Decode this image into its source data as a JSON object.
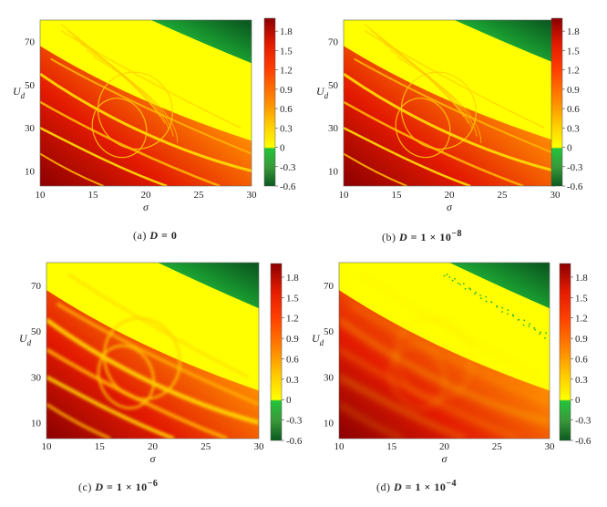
{
  "chart_data": [
    {
      "type": "heatmap",
      "panel_label": "(a)",
      "param_symbol": "D",
      "param_value": "= 0",
      "xlabel": "σ",
      "ylabel": "U_d",
      "xlim": [
        10,
        30
      ],
      "ylim": [
        3,
        80
      ],
      "x_ticks": [
        "10",
        "15",
        "20",
        "25",
        "30"
      ],
      "y_ticks": [
        "10",
        "30",
        "50",
        "70"
      ],
      "colorbar_ticks": [
        "1.8",
        "1.5",
        "1.2",
        "0.9",
        "0.6",
        "0.3",
        "0",
        "-0.3",
        "-0.6"
      ],
      "colorbar_range": [
        -0.6,
        2.0
      ],
      "noise_level": "none",
      "structure": "sharp chaotic bands"
    },
    {
      "type": "heatmap",
      "panel_label": "(b)",
      "param_symbol": "D",
      "param_value": "= 1 × 10",
      "param_exp": "−8",
      "xlabel": "σ",
      "ylabel": "U_d",
      "xlim": [
        10,
        30
      ],
      "ylim": [
        3,
        80
      ],
      "x_ticks": [
        "10",
        "15",
        "20",
        "25",
        "30"
      ],
      "y_ticks": [
        "10",
        "30",
        "50",
        "70"
      ],
      "colorbar_ticks": [
        "1.8",
        "1.5",
        "1.2",
        "0.9",
        "0.6",
        "0.3",
        "0",
        "-0.3",
        "-0.6"
      ],
      "colorbar_range": [
        -0.6,
        2.0
      ],
      "noise_level": "very low",
      "structure": "sharp chaotic bands"
    },
    {
      "type": "heatmap",
      "panel_label": "(c)",
      "param_symbol": "D",
      "param_value": "= 1 × 10",
      "param_exp": "−6",
      "xlabel": "σ",
      "ylabel": "U_d",
      "xlim": [
        10,
        30
      ],
      "ylim": [
        3,
        80
      ],
      "x_ticks": [
        "10",
        "15",
        "20",
        "25",
        "30"
      ],
      "y_ticks": [
        "10",
        "30",
        "50",
        "70"
      ],
      "colorbar_ticks": [
        "1.8",
        "1.5",
        "1.2",
        "0.9",
        "0.6",
        "0.3",
        "0",
        "-0.3",
        "-0.6"
      ],
      "colorbar_range": [
        -0.6,
        2.0
      ],
      "noise_level": "low",
      "structure": "blurred bands"
    },
    {
      "type": "heatmap",
      "panel_label": "(d)",
      "param_symbol": "D",
      "param_value": "= 1 × 10",
      "param_exp": "−4",
      "xlabel": "σ",
      "ylabel": "U_d",
      "xlim": [
        10,
        30
      ],
      "ylim": [
        3,
        80
      ],
      "x_ticks": [
        "10",
        "15",
        "20",
        "25",
        "30"
      ],
      "y_ticks": [
        "10",
        "30",
        "50",
        "70"
      ],
      "colorbar_ticks": [
        "1.8",
        "1.5",
        "1.2",
        "0.9",
        "0.6",
        "0.3",
        "0",
        "-0.3",
        "-0.6"
      ],
      "colorbar_range": [
        -0.6,
        2.0
      ],
      "noise_level": "high",
      "structure": "smooth gradient"
    }
  ],
  "colors": {
    "dark_red": "#8b0000",
    "red": "#e31a00",
    "orange": "#ff8c00",
    "yellow": "#ffff00",
    "green": "#22c33a",
    "dark_green": "#0b5a20"
  }
}
